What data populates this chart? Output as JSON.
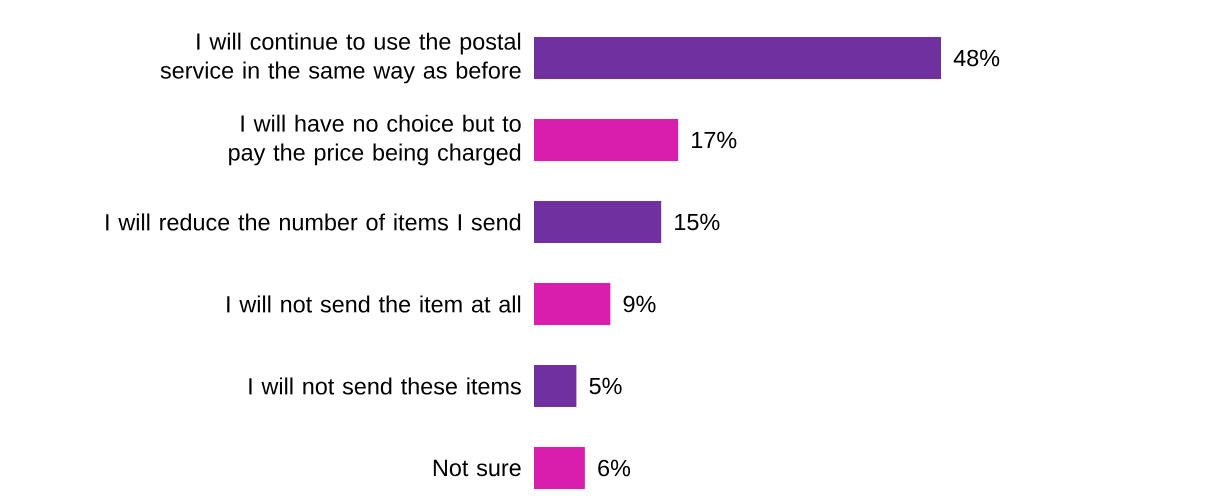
{
  "chart_data": {
    "type": "bar",
    "orientation": "horizontal",
    "categories": [
      "I will continue to use the postal service in the same way as before",
      "I will have no choice but to pay the price being charged",
      "I will reduce the number of items I send",
      "I will not send the item at all",
      "I will not send these items",
      "Not sure"
    ],
    "values": [
      48,
      17,
      15,
      9,
      5,
      6
    ],
    "colors": [
      "#7030a0",
      "#d91ead",
      "#7030a0",
      "#d91ead",
      "#7030a0",
      "#d91ead"
    ],
    "value_labels": [
      "48%",
      "17%",
      "15%",
      "9%",
      "5%",
      "6%"
    ]
  }
}
